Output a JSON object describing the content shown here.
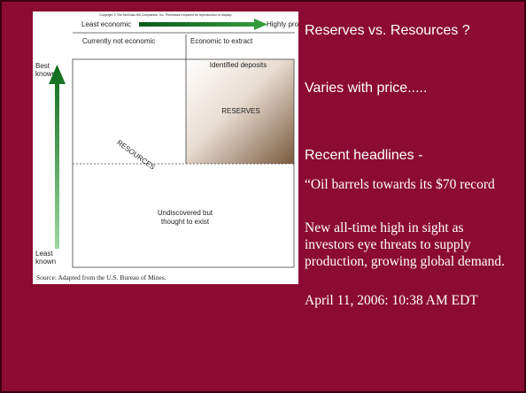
{
  "figure": {
    "copyright": "Copyright © The McGraw-Hill Companies, Inc. Permission required for reproduction or display.",
    "least_economic": "Least economic",
    "highly_profitable": "Highly profitable",
    "not_economic": "Currently not economic",
    "economic": "Economic to extract",
    "best_known": [
      "Best",
      "known"
    ],
    "least_known": [
      "Least",
      "known"
    ],
    "identified": "Identified deposits",
    "reserves": "RESERVES",
    "resources": "RESOURCES",
    "undiscovered": [
      "Undiscovered but",
      "thought to exist"
    ],
    "source": "Source: Adapted from the U.S. Bureau of Mines."
  },
  "text": {
    "title": "Reserves vs. Resources ?",
    "price": "Varies with price.....",
    "headlines": "Recent headlines -",
    "quote": [
      "“Oil barrels towards its $70 record",
      "New all-time high in sight as investors eye threats to supply production, growing global demand.",
      "April 11, 2006: 10:38 AM EDT"
    ]
  }
}
